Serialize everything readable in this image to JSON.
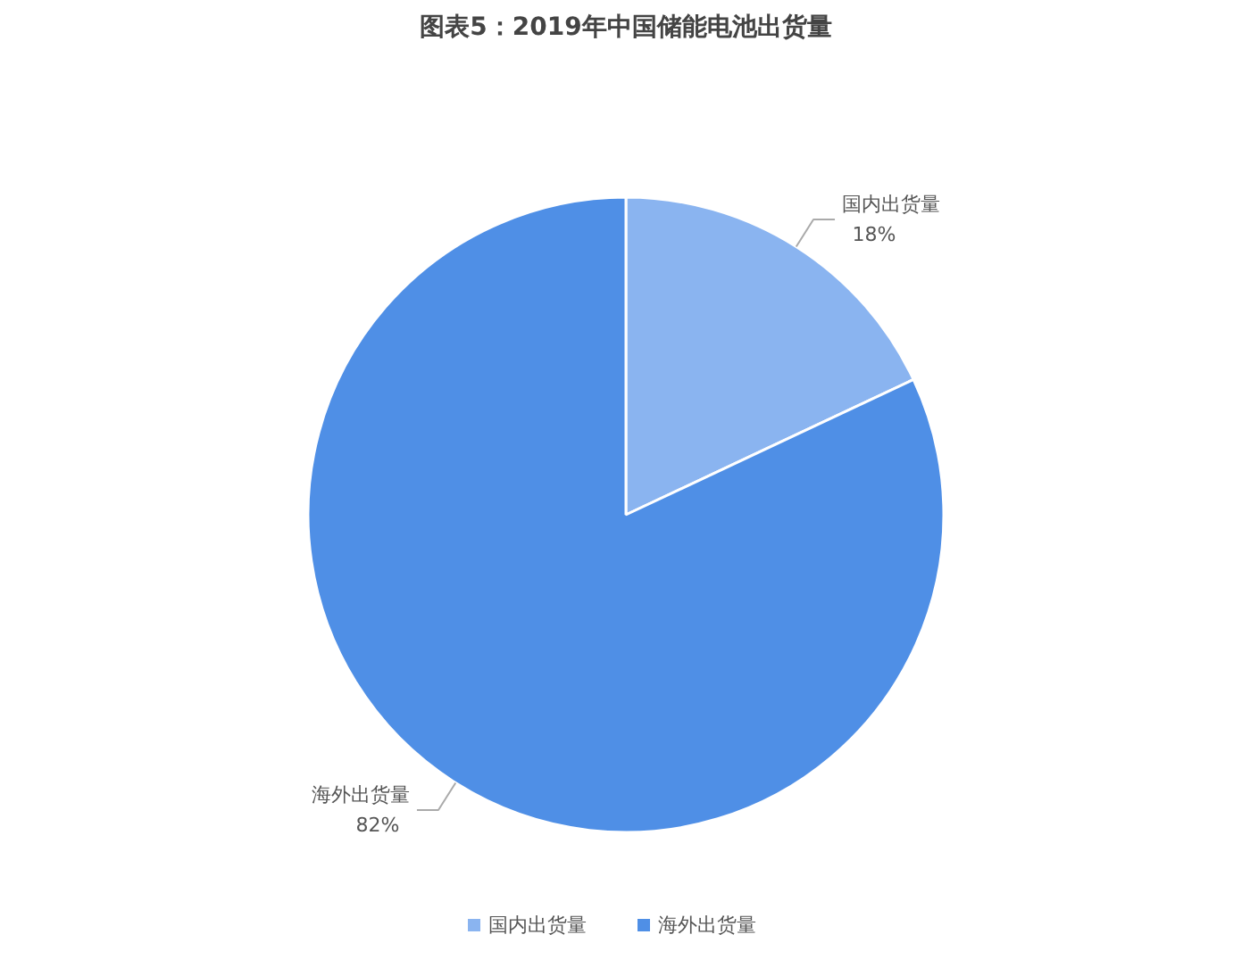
{
  "chart_data": {
    "type": "pie",
    "title": "图表5：2019年中国储能电池出货量",
    "categories": [
      "国内出货量",
      "海外出货量"
    ],
    "values": [
      18,
      82
    ],
    "value_labels": [
      "18%",
      "82%"
    ],
    "colors": [
      "#8ab4f0",
      "#4f8fe6"
    ],
    "legend": "bottom"
  }
}
